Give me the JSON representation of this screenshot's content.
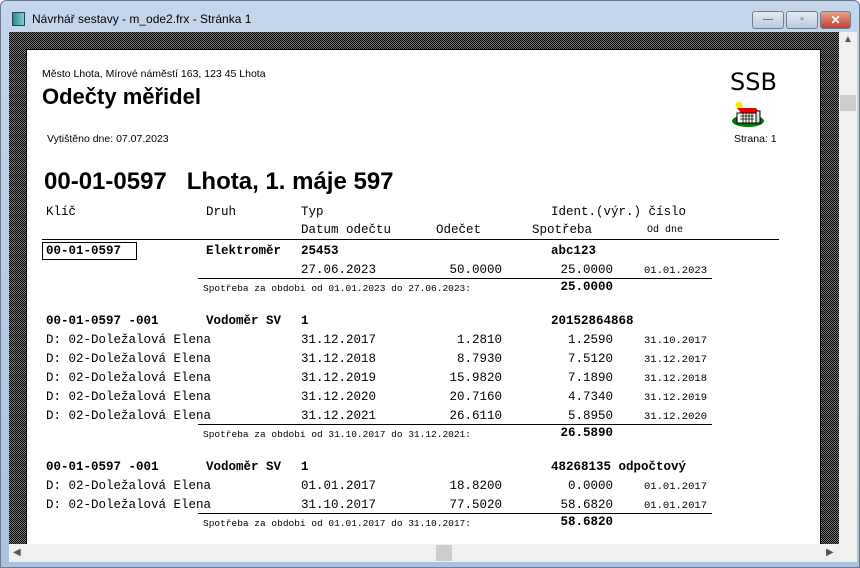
{
  "window": {
    "title": "Návrhář sestavy - m_ode2.frx - Stránka 1",
    "minimize": "—",
    "maximize": "▫",
    "close": "✕"
  },
  "report": {
    "address": "Město Lhota, Mírové náměstí 163, 123 45 Lhota",
    "title": "Odečty měřidel",
    "printed": "Vytištěno dne: 07.07.2023",
    "logo": "SSB",
    "page": "Strana: 1",
    "heading": "00-01-0597   Lhota, 1. máje 597",
    "columns": {
      "key": "Klíč",
      "kind": "Druh",
      "type": "Typ",
      "ident": "Ident.(výr.) číslo",
      "date": "Datum odečtu",
      "reading": "Odečet",
      "consumption": "Spotřeba",
      "from": "Od dne"
    },
    "groups": [
      {
        "key": "00-01-0597",
        "boxed": true,
        "kind": "Elektroměr",
        "type": "25453",
        "ident": "abc123",
        "rows": [
          {
            "label": "",
            "date": "27.06.2023",
            "reading": "50.0000",
            "consumption": "25.0000",
            "from": "01.01.2023"
          }
        ],
        "summary": "Spotřeba za obdobi od 01.01.2023 do 27.06.2023:",
        "total": "25.0000"
      },
      {
        "key": "00-01-0597 -001",
        "boxed": false,
        "kind": "Vodoměr SV",
        "type": "1",
        "ident": "20152864868",
        "rows": [
          {
            "label": "D: 02-Doležalová Elena",
            "date": "31.12.2017",
            "reading": "1.2810",
            "consumption": "1.2590",
            "from": "31.10.2017"
          },
          {
            "label": "D: 02-Doležalová Elena",
            "date": "31.12.2018",
            "reading": "8.7930",
            "consumption": "7.5120",
            "from": "31.12.2017"
          },
          {
            "label": "D: 02-Doležalová Elena",
            "date": "31.12.2019",
            "reading": "15.9820",
            "consumption": "7.1890",
            "from": "31.12.2018"
          },
          {
            "label": "D: 02-Doležalová Elena",
            "date": "31.12.2020",
            "reading": "20.7160",
            "consumption": "4.7340",
            "from": "31.12.2019"
          },
          {
            "label": "D: 02-Doležalová Elena",
            "date": "31.12.2021",
            "reading": "26.6110",
            "consumption": "5.8950",
            "from": "31.12.2020"
          }
        ],
        "summary": "Spotřeba za obdobi od 31.10.2017 do 31.12.2021:",
        "total": "26.5890"
      },
      {
        "key": "00-01-0597 -001",
        "boxed": false,
        "kind": "Vodoměr SV",
        "type": "1",
        "ident": "48268135 odpočtový",
        "rows": [
          {
            "label": "D: 02-Doležalová Elena",
            "date": "01.01.2017",
            "reading": "18.8200",
            "consumption": "0.0000",
            "from": "01.01.2017"
          },
          {
            "label": "D: 02-Doležalová Elena",
            "date": "31.10.2017",
            "reading": "77.5020",
            "consumption": "58.6820",
            "from": "01.01.2017"
          }
        ],
        "summary": "Spotřeba za obdobi od 01.01.2017 do 31.10.2017:",
        "total": "58.6820"
      }
    ]
  }
}
